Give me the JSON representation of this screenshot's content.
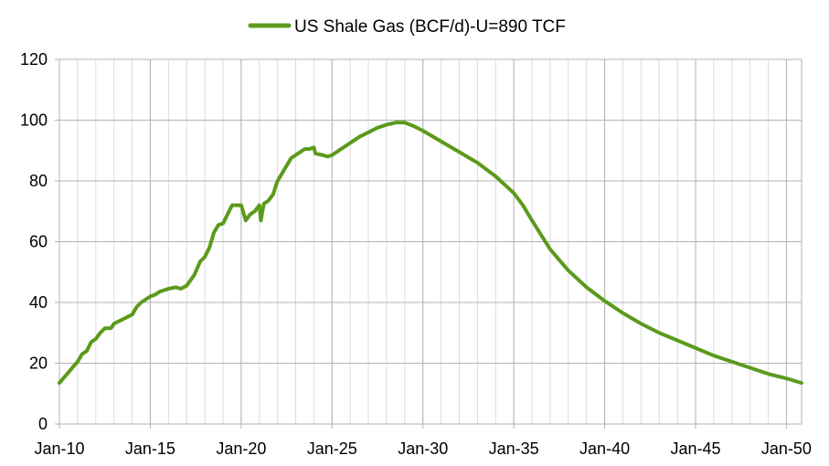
{
  "chart_data": {
    "type": "line",
    "title": "",
    "xlabel": "",
    "ylabel": "",
    "grid": true,
    "legend_placement": "top-center",
    "xlim": [
      "2010-01",
      "2050-11"
    ],
    "ylim": [
      0,
      120
    ],
    "y_ticks": [
      0,
      20,
      40,
      60,
      80,
      100,
      120
    ],
    "x_ticks": [
      {
        "date": "2010-01",
        "label": "Jan-10"
      },
      {
        "date": "2015-01",
        "label": "Jan-15"
      },
      {
        "date": "2020-01",
        "label": "Jan-20"
      },
      {
        "date": "2025-01",
        "label": "Jan-25"
      },
      {
        "date": "2030-01",
        "label": "Jan-30"
      },
      {
        "date": "2035-01",
        "label": "Jan-35"
      },
      {
        "date": "2040-01",
        "label": "Jan-40"
      },
      {
        "date": "2045-01",
        "label": "Jan-45"
      },
      {
        "date": "2050-01",
        "label": "Jan-50"
      }
    ],
    "series": [
      {
        "name": "US Shale Gas (BCF/d)-U=890 TCF",
        "color": "#5b9a1c",
        "points": [
          [
            "2010-01",
            13.5
          ],
          [
            "2010-07",
            17.0
          ],
          [
            "2011-01",
            20.5
          ],
          [
            "2011-04",
            23.0
          ],
          [
            "2011-07",
            24.0
          ],
          [
            "2011-10",
            27.0
          ],
          [
            "2012-01",
            28.0
          ],
          [
            "2012-04",
            30.0
          ],
          [
            "2012-07",
            31.5
          ],
          [
            "2012-11",
            31.5
          ],
          [
            "2013-01",
            33.0
          ],
          [
            "2013-07",
            34.5
          ],
          [
            "2014-01",
            36.0
          ],
          [
            "2014-04",
            38.5
          ],
          [
            "2014-07",
            40.0
          ],
          [
            "2015-01",
            42.0
          ],
          [
            "2015-04",
            42.5
          ],
          [
            "2015-07",
            43.5
          ],
          [
            "2016-01",
            44.5
          ],
          [
            "2016-06",
            45.0
          ],
          [
            "2016-09",
            44.5
          ],
          [
            "2017-01",
            45.5
          ],
          [
            "2017-06",
            49.0
          ],
          [
            "2017-10",
            53.5
          ],
          [
            "2018-01",
            55.0
          ],
          [
            "2018-04",
            58.0
          ],
          [
            "2018-07",
            63.0
          ],
          [
            "2018-10",
            65.5
          ],
          [
            "2019-01",
            66.0
          ],
          [
            "2019-04",
            69.0
          ],
          [
            "2019-07",
            72.0
          ],
          [
            "2019-10",
            72.0
          ],
          [
            "2020-01",
            72.0
          ],
          [
            "2020-04",
            67.0
          ],
          [
            "2020-07",
            69.0
          ],
          [
            "2020-10",
            70.0
          ],
          [
            "2021-01",
            72.0
          ],
          [
            "2021-02",
            67.0
          ],
          [
            "2021-04",
            72.5
          ],
          [
            "2021-07",
            73.5
          ],
          [
            "2021-10",
            75.5
          ],
          [
            "2022-01",
            80.0
          ],
          [
            "2022-04",
            82.5
          ],
          [
            "2022-07",
            85.0
          ],
          [
            "2022-10",
            87.5
          ],
          [
            "2023-01",
            88.5
          ],
          [
            "2023-04",
            89.5
          ],
          [
            "2023-07",
            90.5
          ],
          [
            "2023-10",
            90.5
          ],
          [
            "2024-01",
            91.0
          ],
          [
            "2024-02",
            89.0
          ],
          [
            "2024-07",
            88.5
          ],
          [
            "2024-10",
            88.0
          ],
          [
            "2025-01",
            88.5
          ],
          [
            "2025-07",
            90.5
          ],
          [
            "2026-01",
            92.5
          ],
          [
            "2026-07",
            94.5
          ],
          [
            "2027-01",
            96.0
          ],
          [
            "2027-07",
            97.5
          ],
          [
            "2028-01",
            98.5
          ],
          [
            "2028-07",
            99.2
          ],
          [
            "2029-01",
            99.2
          ],
          [
            "2029-07",
            98.0
          ],
          [
            "2030-01",
            96.5
          ],
          [
            "2031-01",
            93.0
          ],
          [
            "2032-01",
            89.5
          ],
          [
            "2033-01",
            86.0
          ],
          [
            "2034-01",
            81.5
          ],
          [
            "2035-01",
            76.0
          ],
          [
            "2035-07",
            72.0
          ],
          [
            "2036-01",
            67.0
          ],
          [
            "2037-01",
            57.5
          ],
          [
            "2038-01",
            50.5
          ],
          [
            "2039-01",
            45.0
          ],
          [
            "2040-01",
            40.5
          ],
          [
            "2041-01",
            36.5
          ],
          [
            "2042-01",
            33.0
          ],
          [
            "2043-01",
            30.0
          ],
          [
            "2044-01",
            27.5
          ],
          [
            "2045-01",
            25.0
          ],
          [
            "2046-01",
            22.5
          ],
          [
            "2047-01",
            20.5
          ],
          [
            "2048-01",
            18.5
          ],
          [
            "2049-01",
            16.5
          ],
          [
            "2050-01",
            15.0
          ],
          [
            "2050-11",
            13.5
          ]
        ]
      }
    ]
  }
}
